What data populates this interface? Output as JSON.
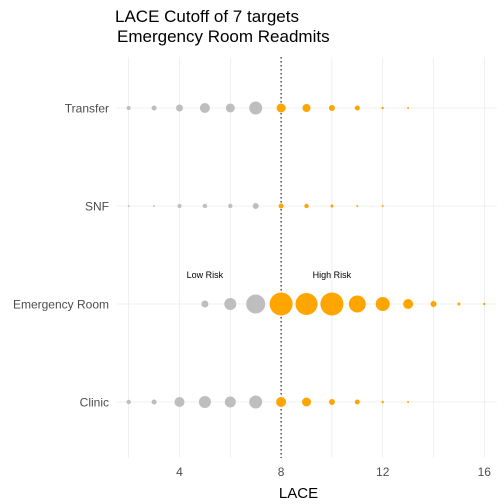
{
  "chart_data": {
    "type": "scatter",
    "title_lines": [
      "LACE Cutoff of 7 targets",
      "Emergency Room Readmits"
    ],
    "xlabel": "LACE",
    "ylabel": "",
    "xlim": [
      1.5,
      16.5
    ],
    "x_ticks": [
      4,
      8,
      12,
      16
    ],
    "x_tick_labels": [
      "4",
      "8",
      "12",
      "16"
    ],
    "categories": [
      "Transfer",
      "SNF",
      "Emergency Room",
      "Clinic"
    ],
    "cutoff": 8,
    "grid": true,
    "legend": "none",
    "colors": {
      "low_risk": "#bebebe",
      "high_risk": "#ffa500",
      "grid": "#e6e6e6",
      "cutoff_line": "#000000"
    },
    "annotations": [
      {
        "text": "Low Risk",
        "x": 5,
        "category": "Emergency Room"
      },
      {
        "text": "High Risk",
        "x": 10,
        "category": "Emergency Room"
      }
    ],
    "series": [
      {
        "category": "Transfer",
        "points": [
          {
            "x": 2,
            "size": 2
          },
          {
            "x": 3,
            "size": 2.5
          },
          {
            "x": 4,
            "size": 3.5
          },
          {
            "x": 5,
            "size": 5
          },
          {
            "x": 6,
            "size": 4.5
          },
          {
            "x": 7,
            "size": 6.5
          },
          {
            "x": 8,
            "size": 4.5
          },
          {
            "x": 9,
            "size": 4
          },
          {
            "x": 10,
            "size": 3
          },
          {
            "x": 11,
            "size": 2.5
          },
          {
            "x": 12,
            "size": 1.2
          },
          {
            "x": 13,
            "size": 1
          }
        ]
      },
      {
        "category": "SNF",
        "points": [
          {
            "x": 2,
            "size": 1
          },
          {
            "x": 3,
            "size": 1
          },
          {
            "x": 4,
            "size": 2
          },
          {
            "x": 5,
            "size": 2.2
          },
          {
            "x": 6,
            "size": 2.2
          },
          {
            "x": 7,
            "size": 3
          },
          {
            "x": 8,
            "size": 2.5
          },
          {
            "x": 9,
            "size": 2.2
          },
          {
            "x": 10,
            "size": 1.5
          },
          {
            "x": 11,
            "size": 1
          },
          {
            "x": 12,
            "size": 1
          }
        ]
      },
      {
        "category": "Emergency Room",
        "points": [
          {
            "x": 5,
            "size": 3.5
          },
          {
            "x": 6,
            "size": 6
          },
          {
            "x": 7,
            "size": 9.5
          },
          {
            "x": 8,
            "size": 11.5
          },
          {
            "x": 9,
            "size": 11
          },
          {
            "x": 10,
            "size": 11.5
          },
          {
            "x": 11,
            "size": 8.5
          },
          {
            "x": 12,
            "size": 7
          },
          {
            "x": 13,
            "size": 5
          },
          {
            "x": 14,
            "size": 3
          },
          {
            "x": 15,
            "size": 1.5
          },
          {
            "x": 16,
            "size": 1.2
          }
        ]
      },
      {
        "category": "Clinic",
        "points": [
          {
            "x": 2,
            "size": 2.2
          },
          {
            "x": 3,
            "size": 2.5
          },
          {
            "x": 4,
            "size": 5
          },
          {
            "x": 5,
            "size": 6
          },
          {
            "x": 6,
            "size": 5.5
          },
          {
            "x": 7,
            "size": 6.5
          },
          {
            "x": 8,
            "size": 5
          },
          {
            "x": 9,
            "size": 4.5
          },
          {
            "x": 10,
            "size": 3
          },
          {
            "x": 11,
            "size": 2.5
          },
          {
            "x": 12,
            "size": 1.2
          },
          {
            "x": 13,
            "size": 1
          }
        ]
      }
    ]
  }
}
